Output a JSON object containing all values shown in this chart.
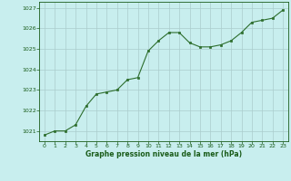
{
  "x": [
    0,
    1,
    2,
    3,
    4,
    5,
    6,
    7,
    8,
    9,
    10,
    11,
    12,
    13,
    14,
    15,
    16,
    17,
    18,
    19,
    20,
    21,
    22,
    23
  ],
  "y": [
    1020.8,
    1021.0,
    1021.0,
    1021.3,
    1022.2,
    1022.8,
    1022.9,
    1023.0,
    1023.5,
    1023.6,
    1024.9,
    1025.4,
    1025.8,
    1025.8,
    1025.3,
    1025.1,
    1025.1,
    1025.2,
    1025.4,
    1025.8,
    1026.3,
    1026.4,
    1026.5,
    1026.9
  ],
  "line_color": "#2d6e2d",
  "marker_color": "#2d6e2d",
  "bg_color": "#c8eeee",
  "grid_color": "#aacccc",
  "xlabel": "Graphe pression niveau de la mer (hPa)",
  "xlabel_color": "#1a5c1a",
  "tick_color": "#1a5c1a",
  "ylim": [
    1020.5,
    1027.3
  ],
  "yticks": [
    1021,
    1022,
    1023,
    1024,
    1025,
    1026,
    1027
  ],
  "xticks": [
    0,
    1,
    2,
    3,
    4,
    5,
    6,
    7,
    8,
    9,
    10,
    11,
    12,
    13,
    14,
    15,
    16,
    17,
    18,
    19,
    20,
    21,
    22,
    23
  ],
  "fig_width": 3.2,
  "fig_height": 2.0,
  "dpi": 100
}
